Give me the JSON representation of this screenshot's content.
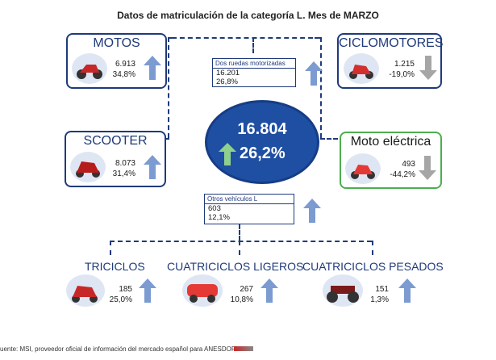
{
  "title": "Datos de matriculación de la categoría L. Mes de MARZO",
  "motos": {
    "label": "MOTOS",
    "units": "6.913",
    "pct": "34,8%"
  },
  "ciclomotores": {
    "label": "CICLOMOTORES",
    "units": "1.215",
    "pct": "-19,0%"
  },
  "scooter": {
    "label": "SCOOTER",
    "units": "8.073",
    "pct": "31,4%"
  },
  "moto_electrica": {
    "label": "Moto eléctrica",
    "units": "493",
    "pct": "-44,2%"
  },
  "dos_ruedas": {
    "header": "Dos ruedas motorizadas",
    "units": "16.201",
    "pct": "26,8%"
  },
  "otros": {
    "header": "Otros vehículos L",
    "units": "603",
    "pct": "12,1%"
  },
  "total": {
    "units": "16.804",
    "pct": "26,2%"
  },
  "triciclos": {
    "label": "TRICICLOS",
    "units": "185",
    "pct": "25,0%"
  },
  "cuadri_ligeros": {
    "label": "CUATRICICLOS LIGEROS",
    "units": "267",
    "pct": "10,8%"
  },
  "cuadri_pesados": {
    "label": "CUATRICICLOS PESADOS",
    "units": "151",
    "pct": "1,3%"
  },
  "footer": "uente: MSI, proveedor oficial de información del mercado español para ANESDOR",
  "colors": {
    "navy": "#1f3a7a",
    "up_arrow": "#7b9bd1",
    "down_arrow": "#a6a6a6",
    "green_arrow": "#8fd08f",
    "circle": "#1f4fa3",
    "green_border": "#4caf50"
  }
}
